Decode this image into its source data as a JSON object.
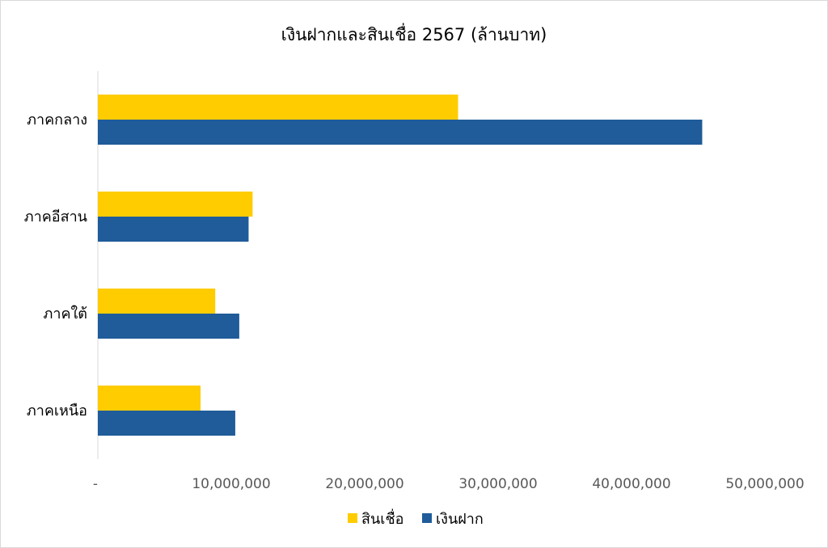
{
  "chart_data": {
    "type": "bar",
    "orientation": "horizontal",
    "title": "เงินฝากและสินเชื่อ 2567 (ล้านบาท)",
    "xlabel": "",
    "ylabel": "",
    "categories": [
      "ภาคกลาง",
      "ภาคอีสาน",
      "ภาคใต้",
      "ภาคเหนือ"
    ],
    "series": [
      {
        "name": "สินเชื่อ",
        "color": "#FFCC00",
        "values": [
          27000000,
          11600000,
          8800000,
          7700000
        ]
      },
      {
        "name": "เงินฝาก",
        "color": "#1F5C99",
        "values": [
          45300000,
          11300000,
          10600000,
          10300000
        ]
      }
    ],
    "xlim": [
      0,
      50000000
    ],
    "x_ticks": [
      0,
      10000000,
      20000000,
      30000000,
      40000000,
      50000000
    ],
    "x_tick_labels": [
      "-",
      "10,000,000",
      "20,000,000",
      "30,000,000",
      "40,000,000",
      "50,000,000"
    ],
    "grid": false,
    "legend_position": "bottom"
  }
}
